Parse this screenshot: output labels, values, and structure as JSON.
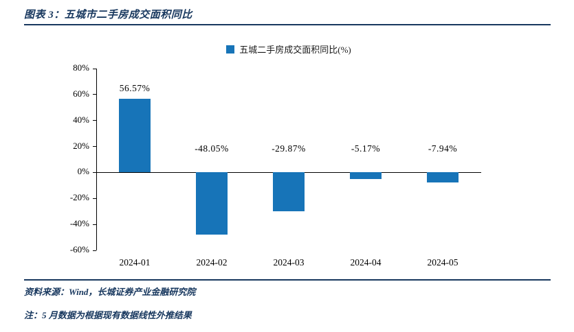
{
  "page": {
    "title": "图表 3：五城市二手房成交面积同比",
    "source": "资料来源：Wind，长城证券产业金融研究院",
    "note": "注：5 月数据为根据现有数据线性外推结果"
  },
  "colors": {
    "accent_navy": "#17375e",
    "bar_blue": "#1774b8",
    "axis_black": "#000000"
  },
  "chart_data": {
    "type": "bar",
    "title": "",
    "legend": [
      "五城二手房成交面积同比(%)"
    ],
    "legend_position": "top",
    "categories": [
      "2024-01",
      "2024-02",
      "2024-03",
      "2024-04",
      "2024-05"
    ],
    "values": [
      56.57,
      -48.05,
      -29.87,
      -5.17,
      -7.94
    ],
    "data_labels": [
      "56.57%",
      "-48.05%",
      "-29.87%",
      "-5.17%",
      "-7.94%"
    ],
    "xlabel": "",
    "ylabel": "",
    "ylim": [
      -60,
      80
    ],
    "ytick_step": 20,
    "ytick_labels": [
      "80%",
      "60%",
      "40%",
      "20%",
      "0%",
      "-20%",
      "-40%",
      "-60%"
    ],
    "grid": false,
    "bar_color": "#1774b8"
  }
}
